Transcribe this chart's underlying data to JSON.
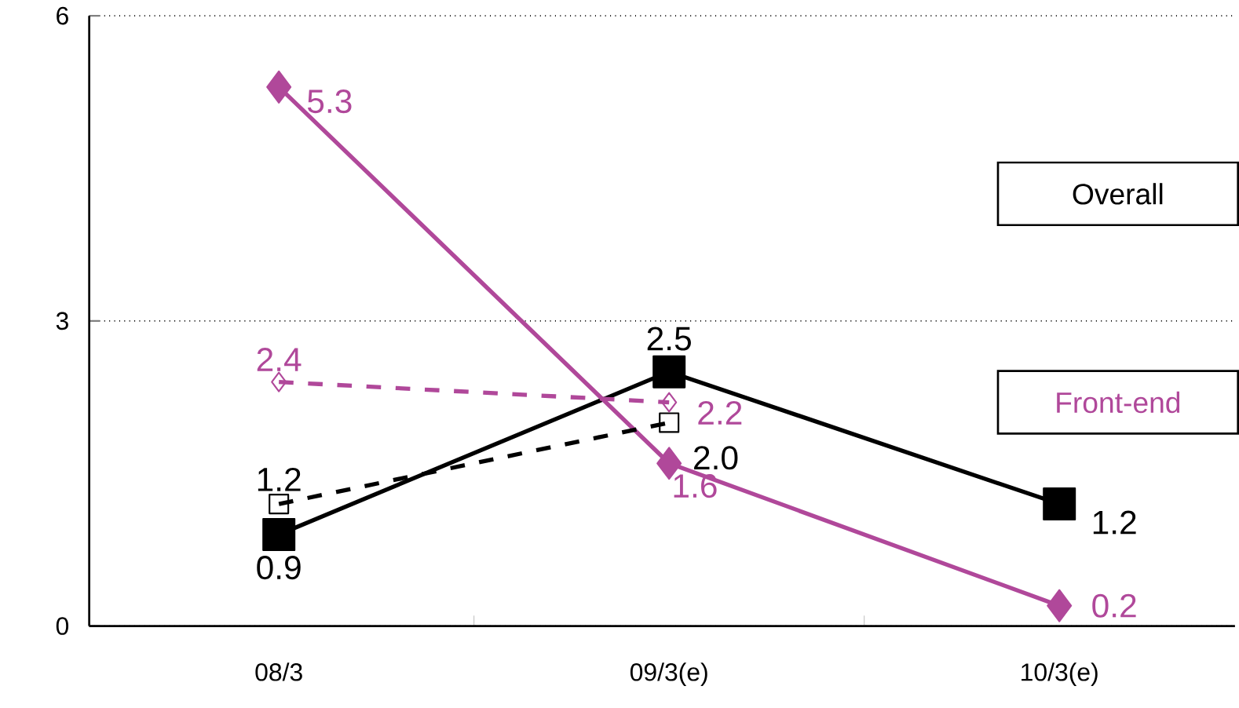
{
  "chart_data": {
    "type": "line",
    "categories": [
      "08/3",
      "09/3(e)",
      "10/3(e)"
    ],
    "series": [
      {
        "name": "Overall",
        "color": "#000000",
        "values": [
          0.9,
          2.5,
          1.2
        ],
        "value_labels": [
          "0.9",
          "2.5",
          "1.2"
        ],
        "marker": "square",
        "line_style": "solid"
      },
      {
        "name": "Front-end",
        "color": "#b0489a",
        "values": [
          5.3,
          1.6,
          0.2
        ],
        "value_labels": [
          "5.3",
          "1.6",
          "0.2"
        ],
        "marker": "diamond",
        "line_style": "solid"
      },
      {
        "color": "#000000",
        "values": [
          1.2,
          2.0,
          null
        ],
        "value_labels": [
          "1.2",
          "2.0",
          null
        ],
        "marker": "square",
        "line_style": "dashed"
      },
      {
        "color": "#b0489a",
        "values": [
          2.4,
          2.2,
          null
        ],
        "value_labels": [
          "2.4",
          "2.2",
          null
        ],
        "marker": "diamond",
        "line_style": "dashed"
      }
    ],
    "ylim": [
      0,
      6
    ],
    "yticks": [
      0,
      3,
      6
    ],
    "grid": "y"
  }
}
